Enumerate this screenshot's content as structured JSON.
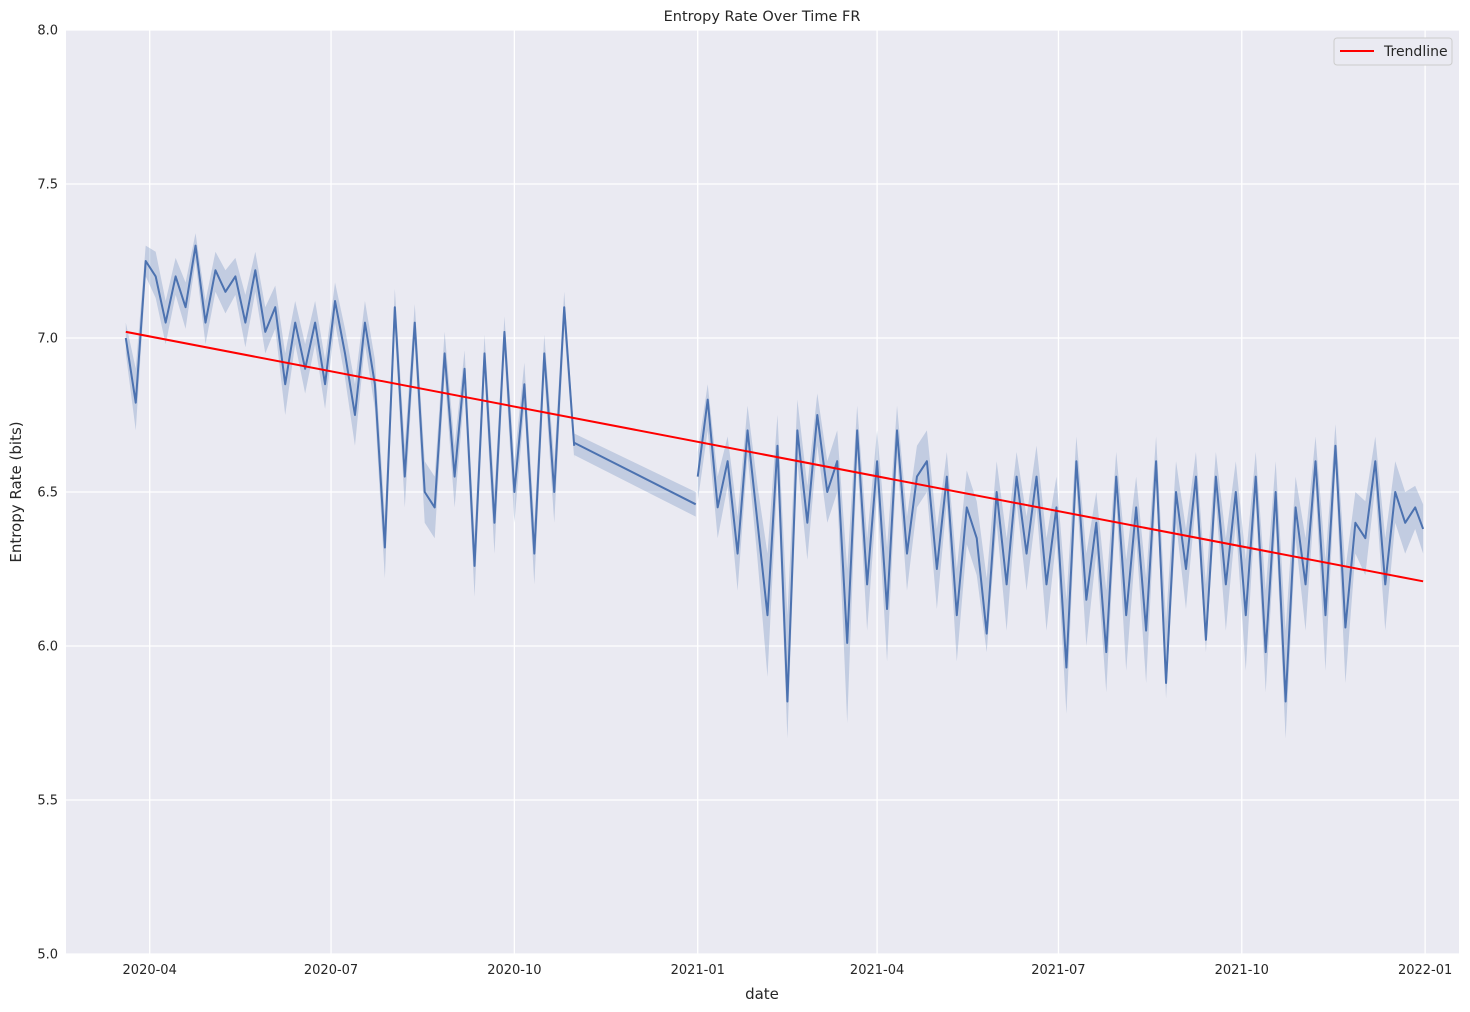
{
  "chart_data": {
    "type": "line",
    "title": "Entropy Rate Over Time FR",
    "xlabel": "date",
    "ylabel": "Entropy Rate (bits)",
    "xlim": [
      "2020-02-19",
      "2022-01-18"
    ],
    "ylim": [
      5.0,
      8.0
    ],
    "x_ticks": [
      "2020-04",
      "2020-07",
      "2020-10",
      "2021-01",
      "2021-04",
      "2021-07",
      "2021-10",
      "2022-01"
    ],
    "y_ticks": [
      "5.0",
      "5.5",
      "6.0",
      "6.5",
      "7.0",
      "7.5",
      "8.0"
    ],
    "grid": true,
    "legend": {
      "placement": "top-right",
      "entries": [
        "Trendline"
      ]
    },
    "colors": {
      "series": "#4c72b0",
      "band": "#4c72b0",
      "trendline": "#ff0000",
      "background": "#eaeaf2",
      "grid": "#ffffff"
    },
    "series": [
      {
        "style": "line-with-confidence-band",
        "segments": [
          {
            "x": [
              "2020-03-20",
              "2020-03-25",
              "2020-03-30",
              "2020-04-04",
              "2020-04-09",
              "2020-04-14",
              "2020-04-19",
              "2020-04-24",
              "2020-04-29",
              "2020-05-04",
              "2020-05-09",
              "2020-05-14",
              "2020-05-19",
              "2020-05-24",
              "2020-05-29",
              "2020-06-03",
              "2020-06-08",
              "2020-06-13",
              "2020-06-18",
              "2020-06-23",
              "2020-06-28",
              "2020-07-03",
              "2020-07-08",
              "2020-07-13",
              "2020-07-18",
              "2020-07-23",
              "2020-07-28",
              "2020-08-02",
              "2020-08-07",
              "2020-08-12",
              "2020-08-17",
              "2020-08-22",
              "2020-08-27",
              "2020-09-01",
              "2020-09-06",
              "2020-09-11",
              "2020-09-16",
              "2020-09-21",
              "2020-09-26",
              "2020-10-01",
              "2020-10-06",
              "2020-10-11",
              "2020-10-16",
              "2020-10-21",
              "2020-10-26",
              "2020-10-31"
            ],
            "y": [
              7.0,
              6.79,
              7.25,
              7.2,
              7.05,
              7.2,
              7.1,
              7.3,
              7.05,
              7.22,
              7.15,
              7.2,
              7.05,
              7.22,
              7.02,
              7.1,
              6.85,
              7.05,
              6.9,
              7.05,
              6.85,
              7.12,
              6.95,
              6.75,
              7.05,
              6.85,
              6.32,
              7.1,
              6.55,
              7.05,
              6.5,
              6.45,
              6.95,
              6.55,
              6.9,
              6.26,
              6.95,
              6.4,
              7.02,
              6.5,
              6.85,
              6.3,
              6.95,
              6.5,
              7.1,
              6.65
            ],
            "upper": [
              7.05,
              6.9,
              7.3,
              7.28,
              7.12,
              7.26,
              7.18,
              7.34,
              7.12,
              7.28,
              7.22,
              7.26,
              7.14,
              7.28,
              7.1,
              7.17,
              6.95,
              7.12,
              6.98,
              7.12,
              6.93,
              7.18,
              7.03,
              6.85,
              7.12,
              6.93,
              6.42,
              7.16,
              6.65,
              7.11,
              6.6,
              6.55,
              7.02,
              6.65,
              6.96,
              6.36,
              7.01,
              6.5,
              7.07,
              6.6,
              6.92,
              6.4,
              7.01,
              6.6,
              7.15,
              6.69
            ],
            "lower": [
              6.95,
              6.7,
              7.2,
              7.13,
              6.98,
              7.14,
              7.03,
              7.25,
              6.98,
              7.15,
              7.08,
              7.14,
              6.97,
              7.15,
              6.95,
              7.03,
              6.75,
              6.98,
              6.82,
              6.98,
              6.77,
              7.05,
              6.87,
              6.65,
              6.98,
              6.77,
              6.22,
              7.03,
              6.45,
              6.98,
              6.4,
              6.35,
              6.88,
              6.45,
              6.83,
              6.16,
              6.88,
              6.3,
              6.95,
              6.4,
              6.78,
              6.2,
              6.88,
              6.4,
              7.03,
              6.61
            ]
          },
          {
            "x": [
              "2020-10-31",
              "2020-12-31"
            ],
            "y": [
              6.66,
              6.46
            ],
            "upper": [
              6.69,
              6.5
            ],
            "lower": [
              6.62,
              6.42
            ]
          },
          {
            "x": [
              "2021-01-01",
              "2021-01-06",
              "2021-01-11",
              "2021-01-16",
              "2021-01-21",
              "2021-01-26",
              "2021-01-31",
              "2021-02-05",
              "2021-02-10",
              "2021-02-15",
              "2021-02-20",
              "2021-02-25",
              "2021-03-02",
              "2021-03-07",
              "2021-03-12",
              "2021-03-17",
              "2021-03-22",
              "2021-03-27",
              "2021-04-01",
              "2021-04-06",
              "2021-04-11",
              "2021-04-16",
              "2021-04-21",
              "2021-04-26",
              "2021-05-01",
              "2021-05-06",
              "2021-05-11",
              "2021-05-16",
              "2021-05-21",
              "2021-05-26",
              "2021-05-31",
              "2021-06-05",
              "2021-06-10",
              "2021-06-15",
              "2021-06-20",
              "2021-06-25",
              "2021-06-30",
              "2021-07-05",
              "2021-07-10",
              "2021-07-15",
              "2021-07-20",
              "2021-07-25",
              "2021-07-30",
              "2021-08-04",
              "2021-08-09",
              "2021-08-14",
              "2021-08-19",
              "2021-08-24",
              "2021-08-29",
              "2021-09-03",
              "2021-09-08",
              "2021-09-13",
              "2021-09-18",
              "2021-09-23",
              "2021-09-28",
              "2021-10-03",
              "2021-10-08",
              "2021-10-13",
              "2021-10-18",
              "2021-10-23",
              "2021-10-28",
              "2021-11-02",
              "2021-11-07",
              "2021-11-12",
              "2021-11-17",
              "2021-11-22",
              "2021-11-27",
              "2021-12-02",
              "2021-12-07",
              "2021-12-12",
              "2021-12-17",
              "2021-12-22",
              "2021-12-27",
              "2021-12-31"
            ],
            "y": [
              6.55,
              6.8,
              6.45,
              6.6,
              6.3,
              6.7,
              6.4,
              6.1,
              6.65,
              5.82,
              6.7,
              6.4,
              6.75,
              6.5,
              6.6,
              6.01,
              6.7,
              6.2,
              6.6,
              6.12,
              6.7,
              6.3,
              6.55,
              6.6,
              6.25,
              6.55,
              6.1,
              6.45,
              6.35,
              6.04,
              6.5,
              6.2,
              6.55,
              6.3,
              6.55,
              6.2,
              6.45,
              5.93,
              6.6,
              6.15,
              6.4,
              5.98,
              6.55,
              6.1,
              6.45,
              6.05,
              6.6,
              5.88,
              6.5,
              6.25,
              6.55,
              6.02,
              6.55,
              6.2,
              6.5,
              6.1,
              6.55,
              5.98,
              6.5,
              5.82,
              6.45,
              6.2,
              6.6,
              6.1,
              6.65,
              6.06,
              6.4,
              6.35,
              6.6,
              6.2,
              6.5,
              6.4,
              6.45,
              6.38
            ],
            "upper": [
              6.63,
              6.85,
              6.55,
              6.68,
              6.42,
              6.78,
              6.52,
              6.3,
              6.75,
              6.1,
              6.8,
              6.52,
              6.82,
              6.6,
              6.7,
              6.25,
              6.78,
              6.35,
              6.7,
              6.32,
              6.78,
              6.42,
              6.65,
              6.7,
              6.38,
              6.63,
              6.25,
              6.57,
              6.47,
              6.22,
              6.6,
              6.35,
              6.63,
              6.42,
              6.65,
              6.35,
              6.55,
              6.15,
              6.68,
              6.3,
              6.5,
              6.18,
              6.63,
              6.28,
              6.55,
              6.22,
              6.68,
              6.08,
              6.6,
              6.38,
              6.63,
              6.2,
              6.63,
              6.35,
              6.6,
              6.28,
              6.63,
              6.18,
              6.6,
              6.05,
              6.55,
              6.35,
              6.68,
              6.28,
              6.72,
              6.25,
              6.5,
              6.47,
              6.68,
              6.35,
              6.6,
              6.5,
              6.52,
              6.46
            ],
            "lower": [
              6.47,
              6.7,
              6.35,
              6.52,
              6.18,
              6.62,
              6.28,
              5.9,
              6.55,
              5.7,
              6.6,
              6.28,
              6.65,
              6.4,
              6.5,
              5.75,
              6.62,
              6.05,
              6.5,
              5.95,
              6.62,
              6.18,
              6.45,
              6.5,
              6.12,
              6.47,
              5.95,
              6.33,
              6.23,
              5.98,
              6.4,
              6.05,
              6.47,
              6.18,
              6.45,
              6.05,
              6.35,
              5.78,
              6.52,
              6.0,
              6.3,
              5.85,
              6.47,
              5.92,
              6.35,
              5.88,
              6.52,
              5.83,
              6.4,
              6.12,
              6.47,
              5.98,
              6.47,
              6.05,
              6.4,
              5.92,
              6.47,
              5.85,
              6.4,
              5.7,
              6.35,
              6.05,
              6.52,
              5.92,
              6.58,
              5.88,
              6.3,
              6.23,
              6.52,
              6.05,
              6.4,
              6.3,
              6.38,
              6.3
            ]
          }
        ]
      },
      {
        "name": "Trendline",
        "style": "straight-line",
        "x": [
          "2020-03-20",
          "2021-12-31"
        ],
        "y": [
          7.02,
          6.21
        ]
      }
    ]
  }
}
